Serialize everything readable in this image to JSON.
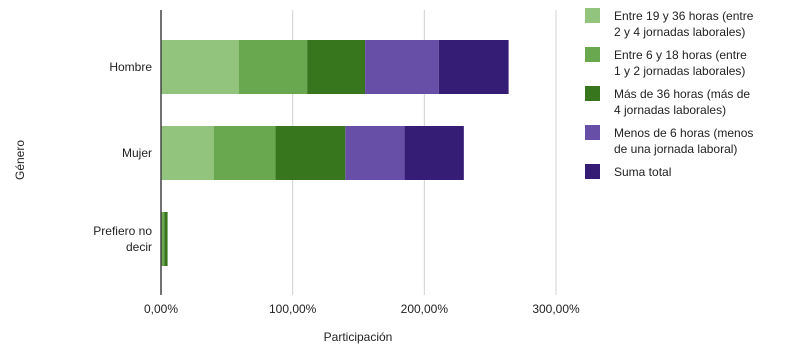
{
  "chart_data": {
    "type": "bar",
    "orientation": "horizontal",
    "stacked": true,
    "title": "",
    "xlabel": "Participación",
    "ylabel": "Género",
    "xlim": [
      0,
      300
    ],
    "x_ticks": [
      "0,00%",
      "100,00%",
      "200,00%",
      "300,00%"
    ],
    "grid": "vertical",
    "legend_position": "right",
    "categories": [
      "Hombre",
      "Mujer",
      "Prefiero no decir"
    ],
    "category_label_lines": [
      [
        "Hombre"
      ],
      [
        "Mujer"
      ],
      [
        "Prefiero no",
        "decir"
      ]
    ],
    "series": [
      {
        "name": "Entre 19 y 36 horas (entre 2 y 4 jornadas laborales)",
        "name_lines": [
          "Entre 19 y 36 horas (entre",
          "2 y 4 jornadas laborales)"
        ],
        "color": "#93c47d",
        "values": [
          59,
          40,
          0
        ]
      },
      {
        "name": "Entre 6 y 18 horas (entre 1 y 2 jornadas laborales)",
        "name_lines": [
          "Entre 6 y 18 horas (entre",
          "1 y 2 jornadas laborales)"
        ],
        "color": "#6aa84f",
        "values": [
          52,
          47,
          0
        ]
      },
      {
        "name": "Más de 36 horas (más de 4 jornadas laborales)",
        "name_lines": [
          "Más de 36 horas (más de",
          "4 jornadas laborales)"
        ],
        "color": "#38761d",
        "values": [
          44,
          53,
          0
        ]
      },
      {
        "name": "Menos de 6 horas (menos de una jornada laboral)",
        "name_lines": [
          "Menos de 6 horas (menos",
          "de una jornada laboral)"
        ],
        "color": "#674ea7",
        "values": [
          56,
          45,
          0
        ]
      },
      {
        "name": "Suma total",
        "name_lines": [
          "Suma total"
        ],
        "color": "#351c75",
        "values": [
          53,
          45,
          2
        ]
      }
    ],
    "extra_marks": [
      {
        "category": "Prefiero no decir",
        "from": 0,
        "to": 2.5,
        "color": "#6aa84f"
      },
      {
        "category": "Prefiero no decir",
        "from": 2.5,
        "to": 5,
        "color": "#38761d"
      }
    ]
  }
}
